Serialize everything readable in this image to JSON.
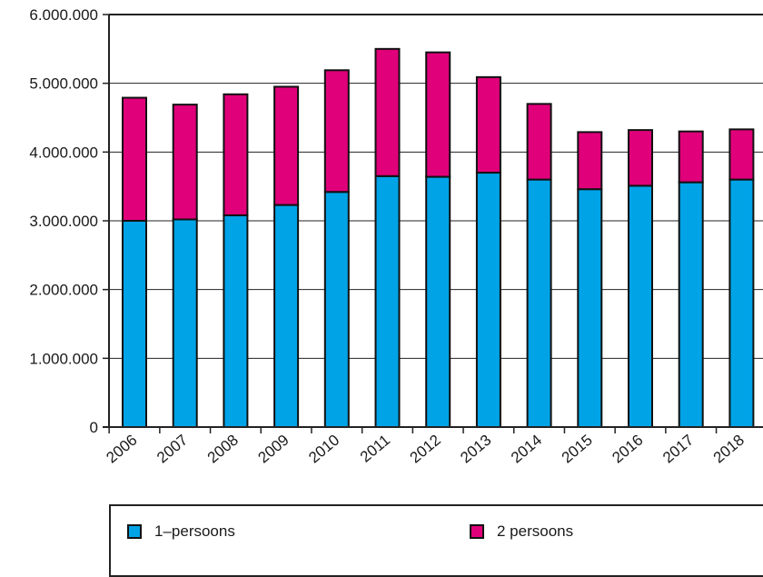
{
  "chart_data": {
    "type": "bar",
    "stacked": true,
    "categories": [
      "2006",
      "2007",
      "2008",
      "2009",
      "2010",
      "2011",
      "2012",
      "2013",
      "2014",
      "2015",
      "2016",
      "2017",
      "2018"
    ],
    "series": [
      {
        "name": "1–persoons",
        "color": "#00a3e6",
        "values": [
          3000000,
          3020000,
          3080000,
          3230000,
          3420000,
          3650000,
          3640000,
          3700000,
          3600000,
          3460000,
          3510000,
          3560000,
          3600000
        ]
      },
      {
        "name": "2 persoons",
        "color": "#e0007a",
        "values": [
          1790000,
          1670000,
          1760000,
          1720000,
          1770000,
          1850000,
          1810000,
          1390000,
          1100000,
          830000,
          810000,
          740000,
          730000
        ]
      }
    ],
    "ylim": [
      0,
      6000000
    ],
    "yticks": [
      0,
      1000000,
      2000000,
      3000000,
      4000000,
      5000000,
      6000000
    ],
    "ytick_labels": [
      "0",
      "1.000.000",
      "2.000.000",
      "3.000.000",
      "4.000.000",
      "5.000.000",
      "6.000.000"
    ],
    "grid": true,
    "legend_position": "bottom"
  },
  "legend": {
    "item1": "1–persoons",
    "item2": "2 persoons"
  }
}
